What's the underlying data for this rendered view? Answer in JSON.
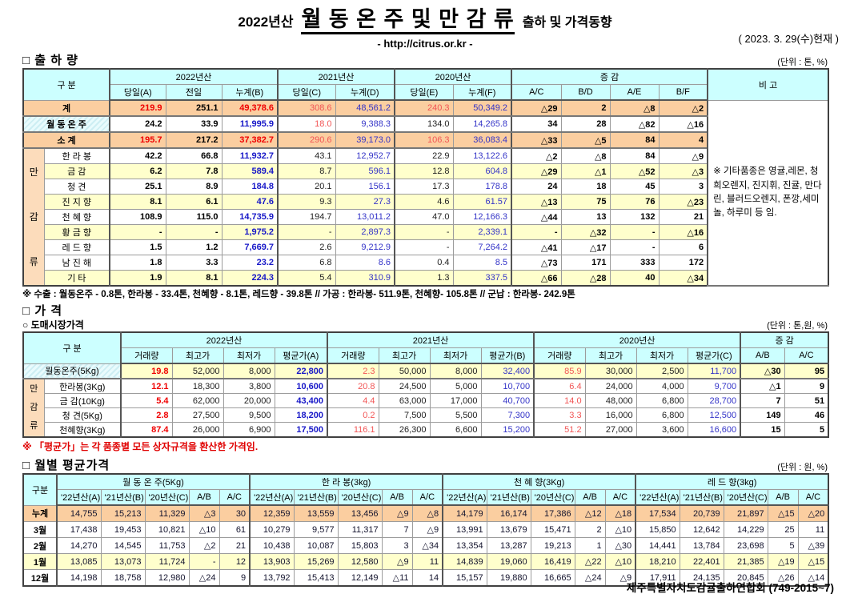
{
  "header": {
    "year": "2022년산",
    "title": "월 동 온 주 및 만 감 류",
    "subtitle": "출하 및 가격동향",
    "url": "- http://citrus.or.kr -",
    "as_of": "( 2023. 3. 29(수)현재 )"
  },
  "shipment": {
    "section_title": "□ 출 하 량",
    "unit": "(단위 : 톤, %)",
    "corner": "구    분",
    "year_groups": [
      "2022년산",
      "2021년산",
      "2020년산"
    ],
    "diff_label": "증      감",
    "remark_label": "비 고",
    "col_headers": [
      "당일(A)",
      "전일",
      "누계(B)",
      "당일(C)",
      "누계(D)",
      "당일(E)",
      "누계(F)",
      "A/C",
      "B/D",
      "A/E",
      "B/F"
    ],
    "side_label": "만감류",
    "rows": [
      {
        "label": "계",
        "values": [
          "219.9",
          "251.1",
          "49,378.6",
          "308.6",
          "48,561.2",
          "240.3",
          "50,349.2",
          "△29",
          "2",
          "△8",
          "△2"
        ]
      },
      {
        "label": "월 동 온 주",
        "values": [
          "24.2",
          "33.9",
          "11,995.9",
          "18.0",
          "9,388.3",
          "134.0",
          "14,265.8",
          "34",
          "28",
          "△82",
          "△16"
        ]
      },
      {
        "label": "소    계",
        "values": [
          "195.7",
          "217.2",
          "37,382.7",
          "290.6",
          "39,173.0",
          "106.3",
          "36,083.4",
          "△33",
          "△5",
          "84",
          "4"
        ]
      },
      {
        "label": "한 라 봉",
        "values": [
          "42.2",
          "66.8",
          "11,932.7",
          "43.1",
          "12,952.7",
          "22.9",
          "13,122.6",
          "△2",
          "△8",
          "84",
          "△9"
        ]
      },
      {
        "label": "금    감",
        "values": [
          "6.2",
          "7.8",
          "589.4",
          "8.7",
          "596.1",
          "12.8",
          "604.8",
          "△29",
          "△1",
          "△52",
          "△3"
        ]
      },
      {
        "label": "청    견",
        "values": [
          "25.1",
          "8.9",
          "184.8",
          "20.1",
          "156.1",
          "17.3",
          "178.8",
          "24",
          "18",
          "45",
          "3"
        ]
      },
      {
        "label": "진 지 향",
        "values": [
          "8.1",
          "6.1",
          "47.6",
          "9.3",
          "27.3",
          "4.6",
          "61.57",
          "△13",
          "75",
          "76",
          "△23"
        ]
      },
      {
        "label": "천 혜 향",
        "values": [
          "108.9",
          "115.0",
          "14,735.9",
          "194.7",
          "13,011.2",
          "47.0",
          "12,166.3",
          "△44",
          "13",
          "132",
          "21"
        ]
      },
      {
        "label": "황 금 향",
        "values": [
          "-",
          "-",
          "1,975.2",
          "-",
          "2,897.3",
          "-",
          "2,339.1",
          "-",
          "△32",
          "-",
          "△16"
        ]
      },
      {
        "label": "레 드 향",
        "values": [
          "1.5",
          "1.2",
          "7,669.7",
          "2.6",
          "9,212.9",
          "-",
          "7,264.2",
          "△41",
          "△17",
          "-",
          "6"
        ]
      },
      {
        "label": "남 진 해",
        "values": [
          "1.8",
          "3.3",
          "23.2",
          "6.8",
          "8.6",
          "0.4",
          "8.5",
          "△73",
          "171",
          "333",
          "172"
        ]
      },
      {
        "label": "기    타",
        "values": [
          "1.9",
          "8.1",
          "224.3",
          "5.4",
          "310.9",
          "1.3",
          "337.5",
          "△66",
          "△28",
          "40",
          "△34"
        ]
      }
    ],
    "remark": "※ 기타품종은 영귤,레몬, 청희오렌지, 진지휘, 진귤, 만다린, 블러드오렌지, 폰깡,세미놀, 하루미 등 임.",
    "footnote": "※ 수출 : 월동온주 - 0.8톤, 한라봉 - 33.4톤, 천혜향 - 8.1톤, 레드향 - 39.8톤  //  가공  :  한라봉- 511.9톤, 천혜향- 105.8톤  //  군납 : 한라봉- 242.9톤"
  },
  "price": {
    "section_title": "□ 가    격",
    "sub_section": "○ 도매시장가격",
    "unit": "(단위 : 톤,원, %)",
    "corner": "구    분",
    "year_groups": [
      "2022년산",
      "2021년산",
      "2020년산"
    ],
    "diff_label": "증  감",
    "col_headers": [
      "거래량",
      "최고가",
      "최저가",
      "평균가(A)",
      "거래량",
      "최고가",
      "최저가",
      "평균가(B)",
      "거래량",
      "최고가",
      "최저가",
      "평균가(C)",
      "A/B",
      "A/C"
    ],
    "side_label": "만감류",
    "rows": [
      {
        "label": "월동온주(5Kg)",
        "values": [
          "19.8",
          "52,000",
          "8,000",
          "22,800",
          "2.3",
          "50,000",
          "8,000",
          "32,400",
          "85.9",
          "30,000",
          "2,500",
          "11,700",
          "△30",
          "95"
        ]
      },
      {
        "label": "한라봉(3Kg)",
        "values": [
          "12.1",
          "18,300",
          "3,800",
          "10,600",
          "20.8",
          "24,500",
          "5,000",
          "10,700",
          "6.4",
          "24,000",
          "4,000",
          "9,700",
          "△1",
          "9"
        ]
      },
      {
        "label": "금 감(10Kg)",
        "values": [
          "5.4",
          "62,000",
          "20,000",
          "43,400",
          "4.4",
          "63,000",
          "17,000",
          "40,700",
          "14.0",
          "48,000",
          "6,800",
          "28,700",
          "7",
          "51"
        ]
      },
      {
        "label": "청   견(5Kg)",
        "values": [
          "2.8",
          "27,500",
          "9,500",
          "18,200",
          "0.2",
          "7,500",
          "5,500",
          "7,300",
          "3.3",
          "16,000",
          "6,800",
          "12,500",
          "149",
          "46"
        ]
      },
      {
        "label": "천혜향(3Kg)",
        "values": [
          "87.4",
          "26,000",
          "6,900",
          "17,500",
          "116.1",
          "26,300",
          "6,600",
          "15,200",
          "51.2",
          "27,000",
          "3,600",
          "16,600",
          "15",
          "5"
        ]
      }
    ],
    "footnote": "※ 「평균가」는 각 품종별 모든 상자규격을 환산한 가격임."
  },
  "monthly": {
    "section_title": "□ 월별 평균가격",
    "unit": "(단위 : 원, %)",
    "corner": "구분",
    "groups": [
      "월 동 온 주(5Kg)",
      "한  라  봉(3kg)",
      "천 혜 향(3Kg)",
      "레 드 향(3kg)"
    ],
    "sub_headers": [
      "'22년산(A)",
      "'21년산(B)",
      "'20년산(C)",
      "A/B",
      "A/C"
    ],
    "rows": [
      {
        "label": "누계",
        "values": [
          "14,755",
          "15,213",
          "11,329",
          "△3",
          "30",
          "12,359",
          "13,559",
          "13,456",
          "△9",
          "△8",
          "14,179",
          "16,174",
          "17,386",
          "△12",
          "△18",
          "17,534",
          "20,739",
          "21,897",
          "△15",
          "△20"
        ]
      },
      {
        "label": "3월",
        "values": [
          "17,438",
          "19,453",
          "10,821",
          "△10",
          "61",
          "10,279",
          "9,577",
          "11,317",
          "7",
          "△9",
          "13,991",
          "13,679",
          "15,471",
          "2",
          "△10",
          "15,850",
          "12,642",
          "14,229",
          "25",
          "11"
        ]
      },
      {
        "label": "2월",
        "values": [
          "14,270",
          "14,545",
          "11,753",
          "△2",
          "21",
          "10,438",
          "10,087",
          "15,803",
          "3",
          "△34",
          "13,354",
          "13,287",
          "19,213",
          "1",
          "△30",
          "14,441",
          "13,784",
          "23,698",
          "5",
          "△39"
        ]
      },
      {
        "label": "1월",
        "values": [
          "13,085",
          "13,073",
          "11,724",
          "-",
          "12",
          "13,903",
          "15,269",
          "12,580",
          "△9",
          "11",
          "14,839",
          "19,060",
          "16,419",
          "△22",
          "△10",
          "18,210",
          "22,401",
          "21,385",
          "△19",
          "△15"
        ]
      },
      {
        "label": "12월",
        "values": [
          "14,198",
          "18,758",
          "12,980",
          "△24",
          "9",
          "13,792",
          "15,413",
          "12,149",
          "△11",
          "14",
          "15,157",
          "19,880",
          "16,665",
          "△24",
          "△9",
          "17,911",
          "24,135",
          "20,845",
          "△26",
          "△14"
        ]
      }
    ]
  },
  "footer": "제주특별자치도감귤출하연합회 (749-2015~7)"
}
